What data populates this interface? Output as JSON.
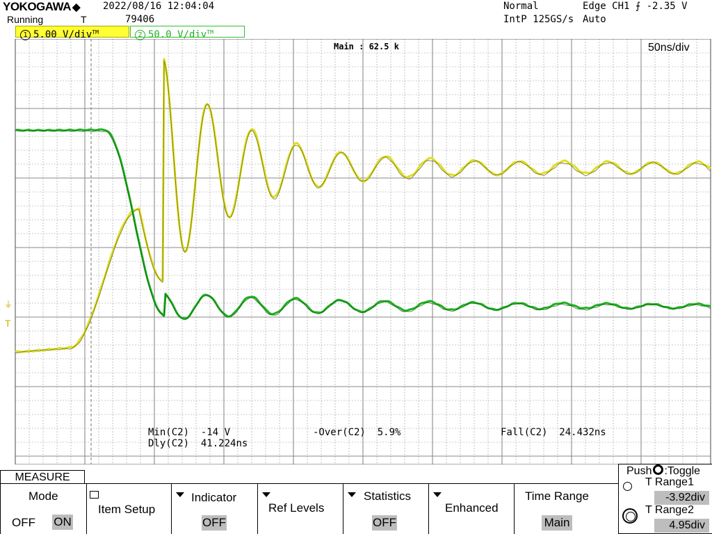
{
  "header": {
    "logo": "YOKOGAWA",
    "status": "Running",
    "trigger_mark": "T",
    "datetime": "2022/08/16 12:04:04",
    "record_number": "79406",
    "acq_mode": "Normal",
    "sampling": "IntP 125GS/s",
    "trigger": "Edge CH1 ⨍ -2.35 V",
    "trigger_mode": "Auto"
  },
  "channels": [
    {
      "num": "1",
      "scale": "5.00 V/div",
      "tag": "TM",
      "color": "#ffff33"
    },
    {
      "num": "2",
      "scale": "50.0 V/div",
      "tag": "TM",
      "color": "#22bb22"
    }
  ],
  "display": {
    "main_label": "Main : 62.5 k",
    "time_div": "50ns/div",
    "grid_color": "#9a9a9a",
    "trace1_color": "#dede20",
    "trace2_color": "#1fb01f"
  },
  "measurements": {
    "min_label": "Min(C2)",
    "min_value": "-14 V",
    "dly_label": "Dly(C2)",
    "dly_value": "41.224ns",
    "over_label": "-Over(C2)",
    "over_value": "5.9%",
    "fall_label": "Fall(C2)",
    "fall_value": "24.432ns"
  },
  "menu": {
    "tab": "MEASURE",
    "mode_label": "Mode",
    "mode_off": "OFF",
    "mode_on": "ON",
    "item_setup": "Item Setup",
    "indicator": "Indicator",
    "indicator_value": "OFF",
    "ref_levels": "Ref Levels",
    "statistics": "Statistics",
    "statistics_value": "OFF",
    "enhanced": "Enhanced",
    "time_range": "Time Range",
    "time_range_value": "Main",
    "push_toggle": "Push",
    "toggle": ":Toggle",
    "trange1_label": "T Range1",
    "trange1_value": "-3.92div",
    "trange2_label": "T Range2",
    "trange2_value": "4.95div"
  }
}
